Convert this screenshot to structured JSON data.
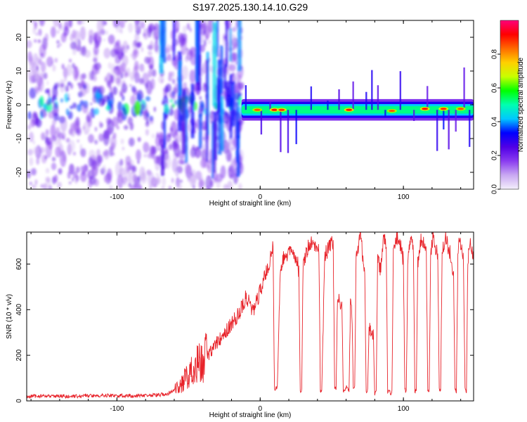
{
  "figure_title": "S197.2025.130.14.10.G29",
  "chart_data": [
    {
      "type": "heatmap",
      "title": "S197.2025.130.14.10.G29",
      "xlabel": "Height of straight line (km)",
      "ylabel": "Frequency (Hz)",
      "xlim": [
        -163,
        149
      ],
      "ylim": [
        -25,
        25
      ],
      "x_ticks": [
        -100,
        0,
        100
      ],
      "y_ticks": [
        -20,
        -10,
        0,
        10,
        20
      ],
      "grid": false,
      "colorbar": {
        "label": "Normalized spectral amplitude",
        "range": [
          0,
          1
        ],
        "ticks": [
          "0.0",
          "0.2",
          "0.4",
          "0.6",
          "0.8"
        ],
        "colormap": [
          "#f4f0fb",
          "#c9a8f2",
          "#8a3cf0",
          "#5000e6",
          "#0000ff",
          "#00c8ff",
          "#00ffb0",
          "#00ff00",
          "#c8ff00",
          "#ffd000",
          "#ff6a00",
          "#ff0000",
          "#ff007a"
        ]
      },
      "regions": [
        {
          "name": "scattered noise",
          "x_range": [
            -163,
            -13
          ],
          "typical_amplitude": 0.15
        },
        {
          "name": "steady tone near 0 Hz",
          "x_range": [
            -13,
            149
          ],
          "frequency_hz": -1.5,
          "typical_amplitude": 0.5
        }
      ],
      "hot_spots": [
        {
          "x": -2,
          "y": -1.5,
          "value": 0.85
        },
        {
          "x": 10,
          "y": -1.5,
          "value": 0.9
        },
        {
          "x": 15,
          "y": -1.5,
          "value": 0.88
        },
        {
          "x": 62,
          "y": -1.5,
          "value": 0.9
        },
        {
          "x": 92,
          "y": -1.8,
          "value": 0.85
        },
        {
          "x": 115,
          "y": -1.2,
          "value": 0.9
        },
        {
          "x": 128,
          "y": -1.2,
          "value": 0.88
        },
        {
          "x": 140,
          "y": -1.2,
          "value": 0.85
        }
      ]
    },
    {
      "type": "line",
      "xlabel": "Height of straight line (km)",
      "ylabel": "SNR (10 * v/v)",
      "xlim": [
        -163,
        149
      ],
      "ylim": [
        0,
        740
      ],
      "x_ticks": [
        -100,
        0,
        100
      ],
      "y_ticks": [
        0,
        200,
        400,
        600
      ],
      "grid": false,
      "series": [
        {
          "name": "SNR",
          "color": "#e8232a",
          "x": [
            -163,
            -150,
            -130,
            -110,
            -90,
            -75,
            -65,
            -60,
            -55,
            -50,
            -45,
            -40,
            -35,
            -30,
            -25,
            -20,
            -15,
            -12,
            -10,
            -7,
            -5,
            -2,
            0,
            3,
            6,
            8,
            9,
            10,
            12,
            14,
            16,
            18,
            20,
            22,
            24,
            26,
            27,
            28,
            29,
            30,
            32,
            34,
            36,
            38,
            40,
            41,
            42,
            43,
            45,
            47,
            49,
            50,
            51,
            52,
            53,
            54,
            55,
            56,
            57,
            58,
            59,
            60,
            61,
            62,
            63,
            64,
            65,
            66,
            67,
            68,
            69,
            70,
            71,
            72,
            73,
            74,
            75,
            76,
            77,
            78,
            79,
            80,
            81,
            82,
            83,
            84,
            85,
            86,
            87,
            88,
            89,
            90,
            91,
            92,
            93,
            94,
            95,
            96,
            97,
            98,
            99,
            100,
            101,
            102,
            103,
            104,
            105,
            106,
            107,
            108,
            109,
            110,
            111,
            112,
            113,
            114,
            115,
            116,
            117,
            118,
            119,
            120,
            121,
            122,
            123,
            124,
            125,
            126,
            127,
            128,
            129,
            130,
            131,
            132,
            133,
            134,
            135,
            136,
            137,
            138,
            139,
            140,
            141,
            142,
            143,
            144,
            145,
            146,
            147,
            148,
            149
          ],
          "y": [
            20,
            22,
            20,
            24,
            22,
            25,
            30,
            50,
            80,
            120,
            150,
            180,
            220,
            260,
            300,
            340,
            380,
            420,
            460,
            420,
            400,
            440,
            480,
            540,
            600,
            650,
            700,
            50,
            60,
            580,
            620,
            640,
            650,
            660,
            640,
            620,
            560,
            40,
            50,
            600,
            650,
            680,
            700,
            690,
            680,
            650,
            40,
            45,
            640,
            660,
            680,
            690,
            680,
            60,
            50,
            440,
            440,
            420,
            420,
            40,
            50,
            60,
            60,
            40,
            420,
            400,
            50,
            60,
            640,
            650,
            700,
            720,
            680,
            600,
            560,
            40,
            50,
            300,
            320,
            300,
            280,
            30,
            40,
            620,
            600,
            580,
            640,
            700,
            720,
            660,
            40,
            50,
            30,
            40,
            640,
            680,
            700,
            720,
            700,
            680,
            640,
            620,
            50,
            40,
            600,
            680,
            720,
            700,
            650,
            40,
            50,
            600,
            650,
            700,
            720,
            700,
            680,
            640,
            40,
            50,
            630,
            700,
            720,
            690,
            660,
            640,
            50,
            40,
            620,
            680,
            700,
            720,
            680,
            660,
            640,
            600,
            560,
            50,
            40,
            640,
            700,
            680,
            660,
            600,
            60,
            40,
            620,
            680,
            700,
            650,
            620
          ]
        }
      ]
    }
  ]
}
